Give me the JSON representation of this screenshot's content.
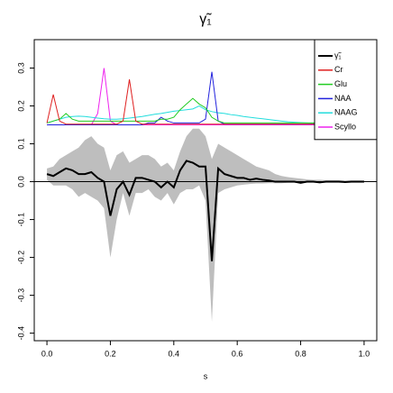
{
  "chart_data": {
    "type": "line",
    "title": "γ̃₁",
    "x_label": "s",
    "x": [
      0,
      0.02,
      0.04,
      0.06,
      0.08,
      0.1,
      0.12,
      0.14,
      0.16,
      0.18,
      0.2,
      0.22,
      0.24,
      0.26,
      0.28,
      0.3,
      0.32,
      0.34,
      0.36,
      0.38,
      0.4,
      0.42,
      0.44,
      0.46,
      0.48,
      0.5,
      0.52,
      0.54,
      0.56,
      0.58,
      0.6,
      0.62,
      0.64,
      0.66,
      0.68,
      0.7,
      0.72,
      0.74,
      0.76,
      0.78,
      0.8,
      0.82,
      0.84,
      0.86,
      0.88,
      0.9,
      0.92,
      0.94,
      0.96,
      0.98,
      1
    ],
    "band": {
      "color": "#bebebe",
      "upper": [
        0.035,
        0.04,
        0.06,
        0.07,
        0.08,
        0.09,
        0.11,
        0.12,
        0.1,
        0.09,
        0.03,
        0.07,
        0.08,
        0.05,
        0.06,
        0.07,
        0.07,
        0.06,
        0.04,
        0.05,
        0.03,
        0.08,
        0.12,
        0.14,
        0.14,
        0.12,
        0.06,
        0.1,
        0.09,
        0.08,
        0.07,
        0.06,
        0.05,
        0.04,
        0.035,
        0.03,
        0.02,
        0.015,
        0.012,
        0.01,
        0.008,
        0.006,
        0.005,
        0.005,
        0.004,
        0.004,
        0.004,
        0.003,
        0.003,
        0.003,
        0.003
      ],
      "lower": [
        0.005,
        -0.01,
        -0.01,
        -0.01,
        -0.02,
        -0.04,
        -0.03,
        -0.04,
        -0.05,
        -0.07,
        -0.2,
        -0.1,
        -0.03,
        -0.09,
        -0.03,
        -0.03,
        -0.02,
        -0.04,
        -0.05,
        -0.03,
        -0.06,
        -0.03,
        -0.02,
        -0.02,
        -0.01,
        -0.05,
        -0.37,
        -0.03,
        -0.02,
        -0.015,
        -0.01,
        -0.008,
        -0.006,
        -0.005,
        -0.005,
        -0.004,
        -0.004,
        -0.004,
        -0.003,
        -0.003,
        -0.003,
        -0.003,
        -0.003,
        -0.003,
        -0.003,
        -0.003,
        -0.003,
        -0.003,
        -0.003,
        -0.003,
        -0.003
      ]
    },
    "reference_line": 0,
    "series": [
      {
        "name": "γ̃₁",
        "color": "#000000",
        "width": 2,
        "values": [
          0.02,
          0.015,
          0.025,
          0.035,
          0.03,
          0.02,
          0.02,
          0.025,
          0.01,
          0.0,
          -0.09,
          -0.02,
          0.0,
          -0.035,
          0.01,
          0.01,
          0.005,
          0.0,
          -0.015,
          0.0,
          -0.015,
          0.03,
          0.055,
          0.05,
          0.04,
          0.04,
          -0.21,
          0.035,
          0.02,
          0.015,
          0.01,
          0.01,
          0.005,
          0.008,
          0.005,
          0.003,
          0,
          0,
          0,
          0,
          -0.003,
          0,
          0,
          -0.002,
          0,
          0,
          0,
          -0.001,
          0,
          0,
          0
        ]
      },
      {
        "name": "Cr",
        "color": "#df2020",
        "width": 1,
        "values": [
          0.155,
          0.23,
          0.16,
          0.152,
          0.152,
          0.152,
          0.152,
          0.152,
          0.152,
          0.152,
          0.152,
          0.152,
          0.16,
          0.27,
          0.16,
          0.152,
          0.152,
          0.152,
          0.152,
          0.152,
          0.152,
          0.152,
          0.152,
          0.152,
          0.152,
          0.152,
          0.152,
          0.152,
          0.152,
          0.152,
          0.152,
          0.152,
          0.152,
          0.152,
          0.152,
          0.152,
          0.152,
          0.152,
          0.152,
          0.152,
          0.152,
          0.152,
          0.152,
          0.152,
          0.152,
          0.152,
          0.152,
          0.152,
          0.152,
          0.152,
          0.152
        ]
      },
      {
        "name": "Glu",
        "color": "#22cc22",
        "width": 1,
        "values": [
          0.155,
          0.16,
          0.165,
          0.18,
          0.165,
          0.16,
          0.16,
          0.16,
          0.16,
          0.16,
          0.16,
          0.16,
          0.16,
          0.16,
          0.16,
          0.16,
          0.16,
          0.16,
          0.165,
          0.165,
          0.17,
          0.19,
          0.205,
          0.22,
          0.205,
          0.195,
          0.17,
          0.16,
          0.155,
          0.155,
          0.155,
          0.155,
          0.155,
          0.155,
          0.155,
          0.155,
          0.155,
          0.155,
          0.155,
          0.155,
          0.155,
          0.155,
          0.155,
          0.155,
          0.155,
          0.155,
          0.155,
          0.155,
          0.155,
          0.155,
          0.155
        ]
      },
      {
        "name": "NAA",
        "color": "#2222dd",
        "width": 1,
        "values": [
          0.15,
          0.15,
          0.15,
          0.15,
          0.15,
          0.15,
          0.15,
          0.15,
          0.15,
          0.15,
          0.15,
          0.15,
          0.15,
          0.15,
          0.15,
          0.15,
          0.155,
          0.155,
          0.17,
          0.16,
          0.155,
          0.155,
          0.155,
          0.155,
          0.155,
          0.165,
          0.29,
          0.16,
          0.152,
          0.152,
          0.152,
          0.152,
          0.152,
          0.152,
          0.152,
          0.152,
          0.152,
          0.152,
          0.152,
          0.152,
          0.152,
          0.152,
          0.152,
          0.152,
          0.152,
          0.152,
          0.152,
          0.152,
          0.152,
          0.152,
          0.152
        ]
      },
      {
        "name": "NAAG",
        "color": "#22dddd",
        "width": 1,
        "values": [
          0.155,
          0.16,
          0.165,
          0.17,
          0.172,
          0.173,
          0.172,
          0.17,
          0.168,
          0.166,
          0.165,
          0.165,
          0.166,
          0.168,
          0.17,
          0.172,
          0.175,
          0.178,
          0.18,
          0.183,
          0.186,
          0.188,
          0.19,
          0.192,
          0.2,
          0.19,
          0.185,
          0.182,
          0.18,
          0.177,
          0.175,
          0.172,
          0.17,
          0.168,
          0.166,
          0.164,
          0.162,
          0.16,
          0.158,
          0.157,
          0.156,
          0.155,
          0.154,
          0.154,
          0.154,
          0.154,
          0.154,
          0.154,
          0.154,
          0.154,
          0.154
        ]
      },
      {
        "name": "Scyllo",
        "color": "#ee22ee",
        "width": 1,
        "values": [
          0.15,
          0.15,
          0.15,
          0.15,
          0.15,
          0.15,
          0.15,
          0.15,
          0.18,
          0.3,
          0.16,
          0.15,
          0.15,
          0.15,
          0.15,
          0.15,
          0.15,
          0.15,
          0.15,
          0.15,
          0.15,
          0.15,
          0.15,
          0.15,
          0.15,
          0.15,
          0.15,
          0.15,
          0.15,
          0.15,
          0.15,
          0.15,
          0.15,
          0.15,
          0.15,
          0.15,
          0.15,
          0.15,
          0.15,
          0.15,
          0.15,
          0.15,
          0.15,
          0.15,
          0.15,
          0.15,
          0.15,
          0.15,
          0.15,
          0.15,
          0.15
        ]
      }
    ],
    "xlim": [
      -0.04,
      1.04
    ],
    "xticks": [
      {
        "value": 0,
        "label": "0.0"
      },
      0.2,
      0.4,
      0.6,
      0.8,
      {
        "value": 1,
        "label": "1.0"
      }
    ],
    "ylim": [
      -0.42,
      0.375
    ],
    "yticks": [
      -0.4,
      -0.3,
      -0.2,
      -0.1,
      {
        "value": 0,
        "label": "0.0"
      },
      0.1,
      0.2,
      0.3
    ],
    "legend": "top-right"
  }
}
